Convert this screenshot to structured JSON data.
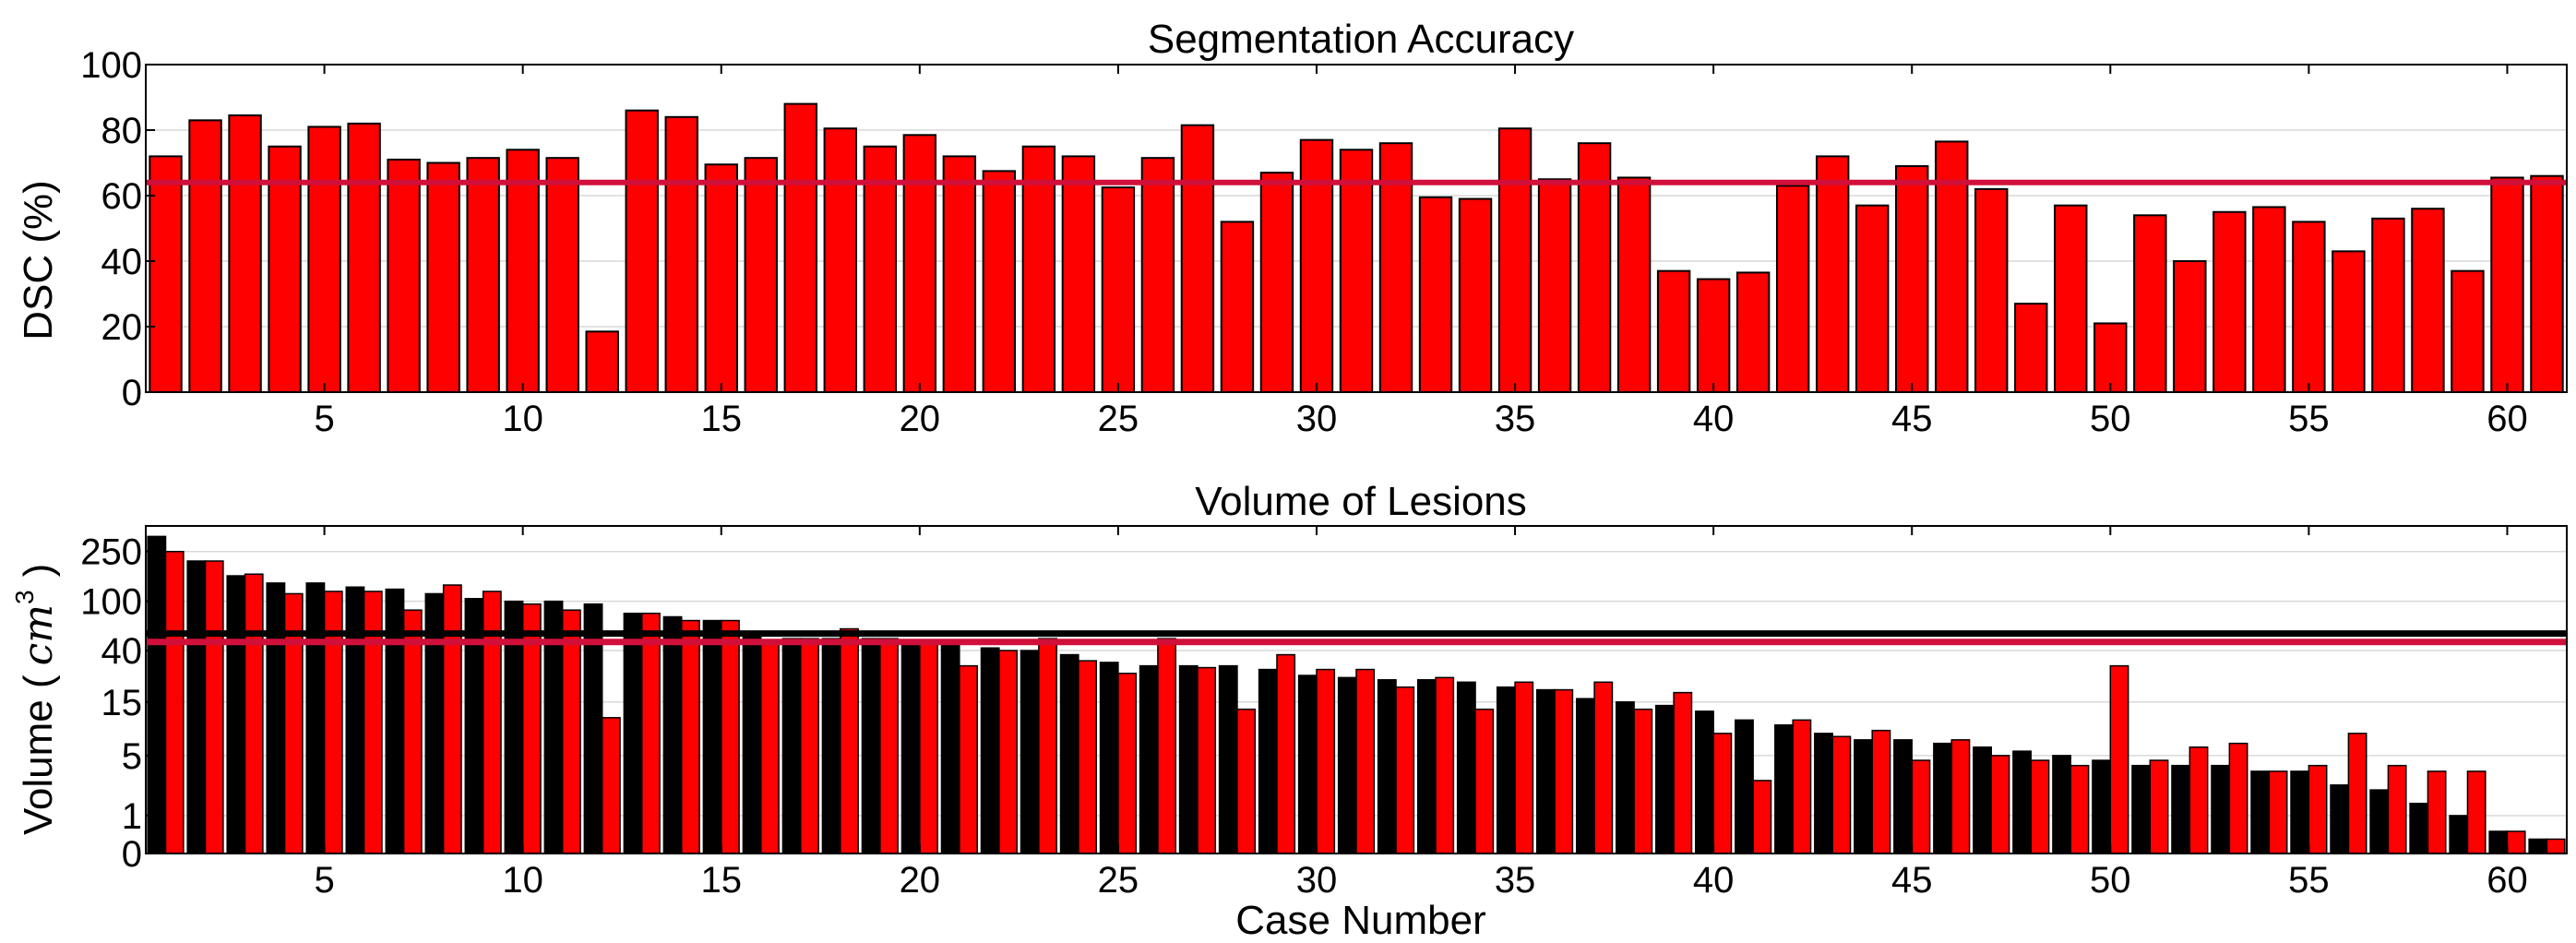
{
  "chart_data": [
    {
      "type": "bar",
      "title": "Segmentation Accuracy",
      "xlabel": "",
      "ylabel": "DSC (%)",
      "xlim": [
        0.5,
        61.5
      ],
      "ylim": [
        0,
        100
      ],
      "yticks": [
        0,
        20,
        40,
        60,
        80,
        100
      ],
      "xticks": [
        5,
        10,
        15,
        20,
        25,
        30,
        35,
        40,
        45,
        50,
        55,
        60
      ],
      "grid": "horizontal",
      "bar_color": "#ff0000",
      "reference_line": {
        "value": 64,
        "color": "#d0103a"
      },
      "series": [
        {
          "values": [
            72,
            83,
            84.5,
            75,
            81,
            82,
            71,
            70,
            71.5,
            74,
            71.5,
            18.5,
            86,
            84,
            69.5,
            71.5,
            88,
            80.5,
            75,
            78.5,
            72,
            67.5,
            75,
            72,
            62.5,
            71.5,
            81.5,
            52,
            67,
            77,
            74,
            76,
            59.5,
            59,
            80.5,
            65,
            76,
            65.5,
            37,
            34.5,
            36.5,
            63,
            72,
            57,
            69,
            76.5,
            62,
            27,
            57,
            21,
            54,
            40,
            55,
            56.5,
            52,
            43,
            53,
            56,
            37,
            65.5,
            66
          ]
        }
      ]
    },
    {
      "type": "bar",
      "title": "Volume of Lesions",
      "xlabel": "Case Number",
      "ylabel": "Volume (",
      "ylabel_unit": "cm",
      "ylabel_exp": "3",
      "ylabel_end": ")",
      "xlim": [
        0.5,
        61.5
      ],
      "yscale": "symlog",
      "ylim": [
        0,
        400
      ],
      "yticks": [
        0,
        1,
        5,
        15,
        40,
        100,
        250
      ],
      "xticks": [
        5,
        10,
        15,
        20,
        25,
        30,
        35,
        40,
        45,
        50,
        55,
        60
      ],
      "grid": "horizontal",
      "reference_lines": [
        {
          "value": 55,
          "color": "#000000"
        },
        {
          "value": 47,
          "color": "#d0103a"
        }
      ],
      "series": [
        {
          "color": "#000000",
          "values": [
            330,
            210,
            160,
            140,
            140,
            130,
            125,
            115,
            105,
            100,
            100,
            95,
            80,
            75,
            70,
            55,
            50,
            50,
            50,
            45,
            45,
            42,
            40,
            37,
            32,
            30,
            30,
            30,
            28,
            25,
            24,
            23,
            23,
            22,
            20,
            19,
            16,
            15,
            14,
            12.5,
            10.5,
            9.5,
            8,
            7,
            7,
            6.5,
            6,
            5.5,
            5,
            4.5,
            4,
            4,
            4,
            3.5,
            3.5,
            2.5,
            2.2,
            1.5,
            1,
            0.5,
            0.3
          ]
        },
        {
          "color": "#ff0000",
          "values": [
            250,
            210,
            165,
            115,
            120,
            120,
            85,
            135,
            120,
            95,
            85,
            11,
            80,
            70,
            70,
            47,
            50,
            60,
            50,
            45,
            30,
            40,
            50,
            33,
            26,
            50,
            29,
            13,
            37,
            28,
            28,
            20,
            24,
            13,
            22,
            19,
            22,
            13,
            18,
            8,
            2.8,
            10.5,
            7.5,
            8.5,
            4.5,
            7,
            5,
            4.5,
            4,
            30,
            4.5,
            6,
            6.5,
            3.5,
            4,
            8,
            4,
            3.5,
            3.5,
            0.5,
            0.3
          ]
        }
      ]
    }
  ]
}
